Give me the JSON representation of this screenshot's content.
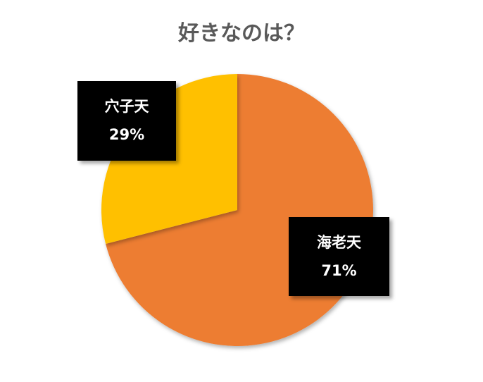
{
  "chart_data": {
    "type": "pie",
    "title": "好きなのは？",
    "start_angle_deg": 0,
    "direction": "clockwise",
    "slices": [
      {
        "label": "海老天",
        "value": 71,
        "display": "71%",
        "color": "#ED7D31"
      },
      {
        "label": "穴子天",
        "value": 29,
        "display": "29%",
        "color": "#FFC000"
      }
    ],
    "legend": "none"
  }
}
